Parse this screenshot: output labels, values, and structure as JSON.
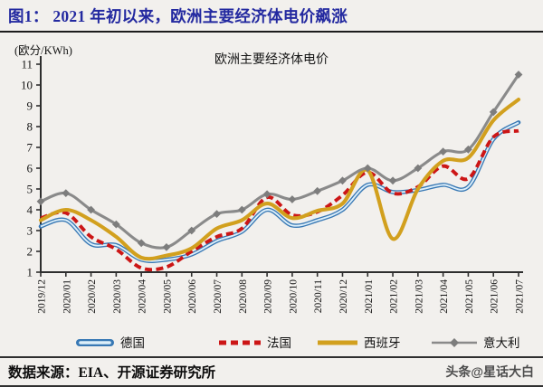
{
  "header": {
    "title": "图1：  2021 年初以来，欧洲主要经济体电价飙涨"
  },
  "chart_data": {
    "type": "line",
    "title": "欧洲主要经济体电价",
    "unit_label": "(欧分/KWh)",
    "xlabel": "",
    "ylabel": "欧分/KWh",
    "ylim": [
      1,
      11
    ],
    "yticks": [
      1,
      2,
      3,
      4,
      5,
      6,
      7,
      8,
      9,
      10,
      11
    ],
    "grid": false,
    "legend_position": "bottom",
    "categories": [
      "2019/12",
      "2020/01",
      "2020/02",
      "2020/03",
      "2020/04",
      "2020/05",
      "2020/06",
      "2020/07",
      "2020/08",
      "2020/09",
      "2020/10",
      "2020/11",
      "2020/12",
      "2021/01",
      "2021/02",
      "2021/03",
      "2021/04",
      "2021/05",
      "2021/06",
      "2021/07"
    ],
    "series": [
      {
        "name": "德国",
        "style": "double",
        "color": "#3878b4",
        "inner_color": "#ddeffa",
        "values": [
          3.2,
          3.5,
          2.35,
          2.3,
          1.6,
          1.6,
          1.85,
          2.5,
          2.95,
          4.0,
          3.25,
          3.5,
          4.0,
          5.2,
          4.85,
          4.95,
          5.2,
          5.1,
          7.4,
          8.2
        ]
      },
      {
        "name": "法国",
        "style": "dashed",
        "color": "#cc1616",
        "values": [
          3.6,
          3.85,
          2.7,
          2.1,
          1.2,
          1.25,
          2.0,
          2.7,
          3.1,
          4.6,
          3.75,
          3.9,
          4.7,
          5.8,
          4.8,
          5.1,
          6.1,
          5.5,
          7.5,
          7.8
        ]
      },
      {
        "name": "西班牙",
        "style": "solid",
        "color": "#d2a01e",
        "values": [
          3.5,
          4.0,
          3.5,
          2.7,
          1.7,
          1.8,
          2.15,
          3.1,
          3.5,
          4.3,
          3.6,
          3.95,
          4.3,
          5.9,
          2.6,
          5.0,
          6.35,
          6.5,
          8.3,
          9.3
        ]
      },
      {
        "name": "意大利",
        "style": "diamond",
        "color": "#8a8a8a",
        "marker_color": "#7d7d7d",
        "values": [
          4.4,
          4.8,
          4.0,
          3.3,
          2.4,
          2.2,
          3.0,
          3.8,
          4.0,
          4.75,
          4.5,
          4.9,
          5.4,
          6.0,
          5.4,
          6.0,
          6.8,
          6.9,
          8.7,
          10.5
        ]
      }
    ]
  },
  "footer": {
    "source": "数据来源：EIA、开源证券研究所",
    "watermark": "头条@星话大白"
  }
}
